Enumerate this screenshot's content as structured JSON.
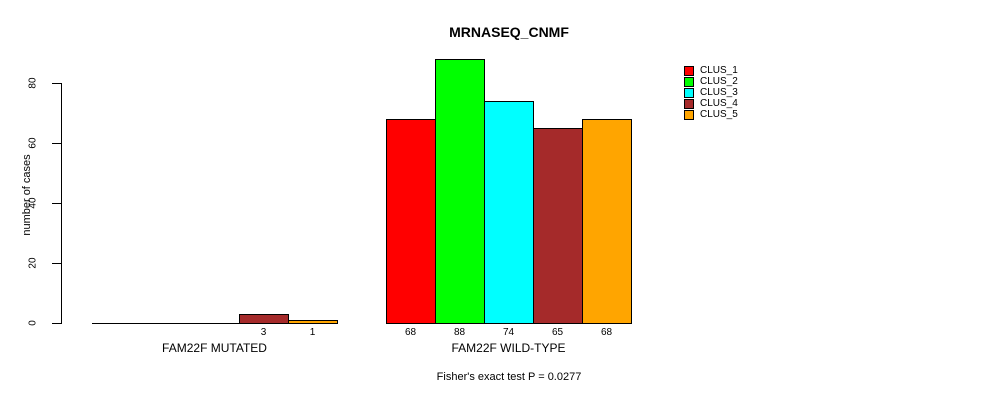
{
  "chart_data": {
    "type": "bar",
    "title": "MRNASEQ_CNMF",
    "xlabel": "",
    "ylabel": "number of cases",
    "ylim": [
      0,
      88
    ],
    "yticks": [
      0,
      20,
      40,
      60,
      80
    ],
    "grid": false,
    "legend_position": "top-right",
    "series": [
      "CLUS_1",
      "CLUS_2",
      "CLUS_3",
      "CLUS_4",
      "CLUS_5"
    ],
    "colors": [
      "#ff0000",
      "#00ff00",
      "#00ffff",
      "#a52a2a",
      "#ffa500"
    ],
    "groups": [
      {
        "label": "FAM22F MUTATED",
        "values": [
          0,
          0,
          0,
          3,
          1
        ],
        "value_labels": [
          "",
          "",
          "",
          "3",
          "1"
        ]
      },
      {
        "label": "FAM22F WILD-TYPE",
        "values": [
          68,
          88,
          74,
          65,
          68
        ],
        "value_labels": [
          "68",
          "88",
          "74",
          "65",
          "68"
        ]
      }
    ],
    "legend": {
      "entries": [
        {
          "label": "CLUS_1",
          "color": "#ff0000"
        },
        {
          "label": "CLUS_2",
          "color": "#00ff00"
        },
        {
          "label": "CLUS_3",
          "color": "#00ffff"
        },
        {
          "label": "CLUS_4",
          "color": "#a52a2a"
        },
        {
          "label": "CLUS_5",
          "color": "#ffa500"
        }
      ]
    },
    "annotation": "Fisher's exact test P = 0.0277"
  }
}
